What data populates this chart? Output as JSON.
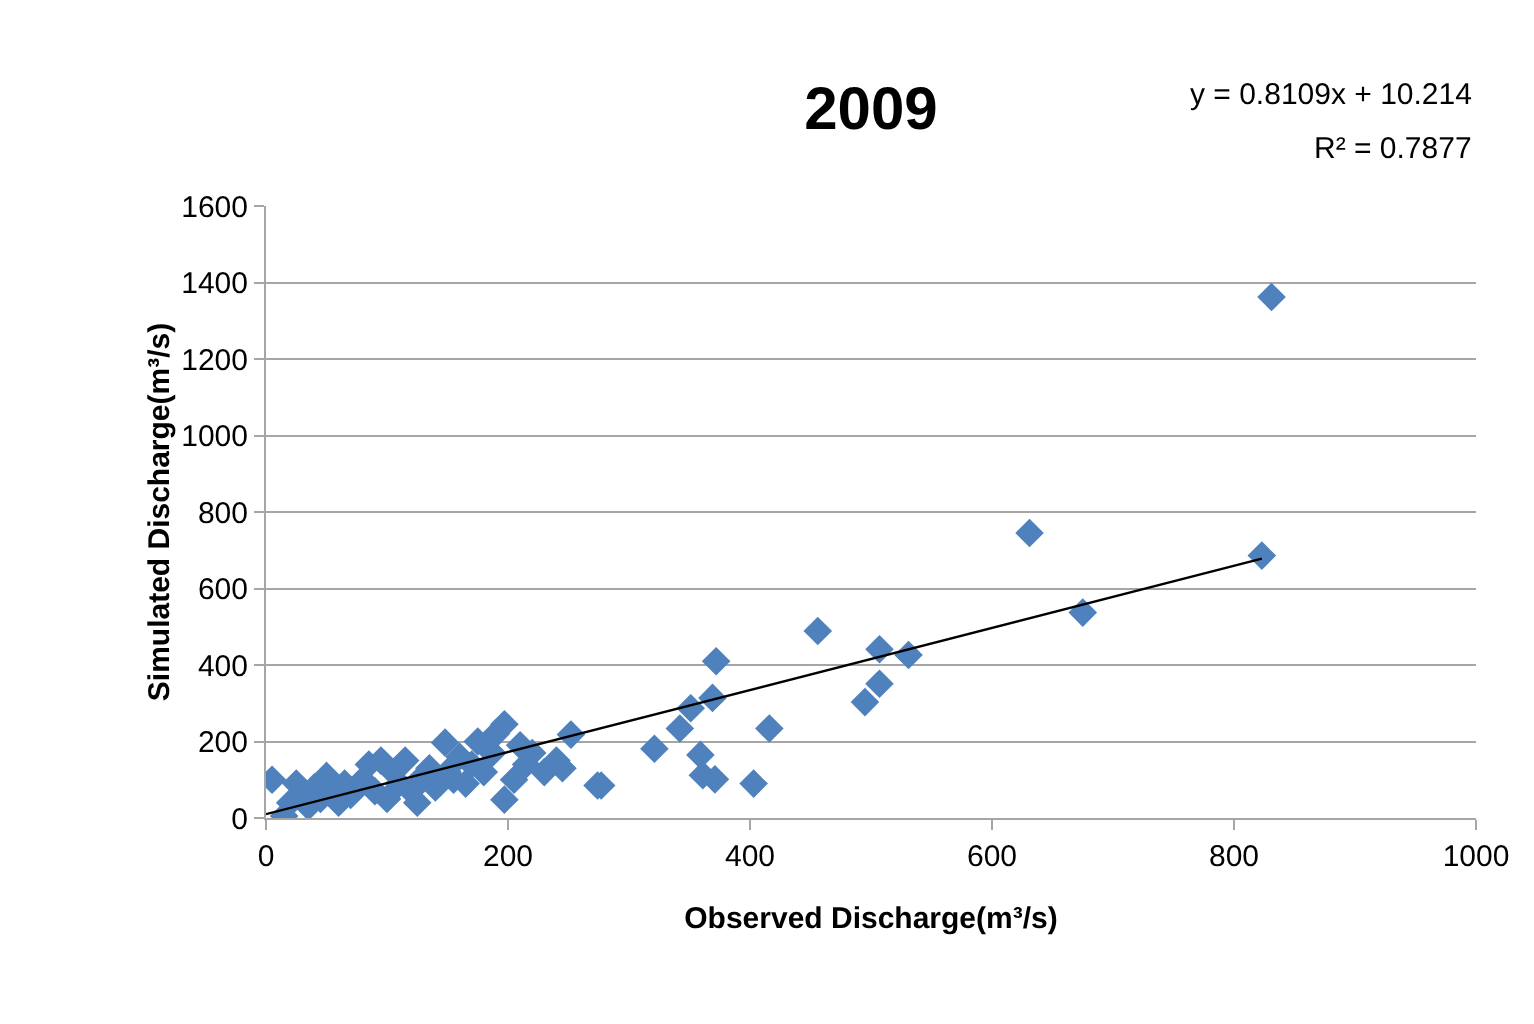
{
  "chart_data": {
    "type": "scatter",
    "title": "2009",
    "xlabel": "Observed Discharge(m³/s)",
    "ylabel": "Simulated Discharge(m³/s)",
    "annotations": [
      "y = 0.8109x + 10.214",
      "R² = 0.7877"
    ],
    "xlim": [
      0,
      1000
    ],
    "xticks": [
      0,
      200,
      400,
      600,
      800,
      1000
    ],
    "ylim": [
      0,
      1600
    ],
    "yticks": [
      0,
      200,
      400,
      600,
      800,
      1000,
      1200,
      1400,
      1600
    ],
    "grid": "y",
    "marker": "diamond",
    "series": [
      {
        "color": "#4f81bd",
        "x": [
          5,
          15,
          20,
          25,
          30,
          35,
          40,
          45,
          50,
          55,
          60,
          65,
          70,
          80,
          85,
          90,
          95,
          100,
          105,
          110,
          115,
          120,
          125,
          130,
          135,
          140,
          148,
          150,
          155,
          160,
          165,
          170,
          175,
          180,
          187,
          190,
          197,
          197,
          205,
          210,
          215,
          220,
          230,
          240,
          245,
          252,
          274,
          277,
          321,
          342,
          351,
          359,
          361,
          369,
          371,
          372,
          403,
          416,
          456,
          495,
          507,
          507,
          531,
          631,
          675,
          823,
          831
        ],
        "values": [
          100,
          5,
          40,
          90,
          60,
          30,
          80,
          50,
          110,
          70,
          40,
          90,
          60,
          100,
          140,
          70,
          150,
          50,
          120,
          90,
          150,
          70,
          40,
          110,
          130,
          80,
          197,
          120,
          100,
          160,
          90,
          140,
          200,
          120,
          170,
          220,
          245,
          48,
          100,
          190,
          140,
          170,
          120,
          150,
          130,
          218,
          85,
          85,
          181,
          234,
          287,
          165,
          112,
          314,
          101,
          410,
          90,
          234,
          489,
          303,
          351,
          441,
          426,
          745,
          537,
          686,
          1362
        ]
      },
      {
        "type": "line",
        "color": "#000000",
        "marker": "none",
        "x": [
          0,
          823
        ],
        "values": [
          10,
          678
        ]
      }
    ]
  }
}
